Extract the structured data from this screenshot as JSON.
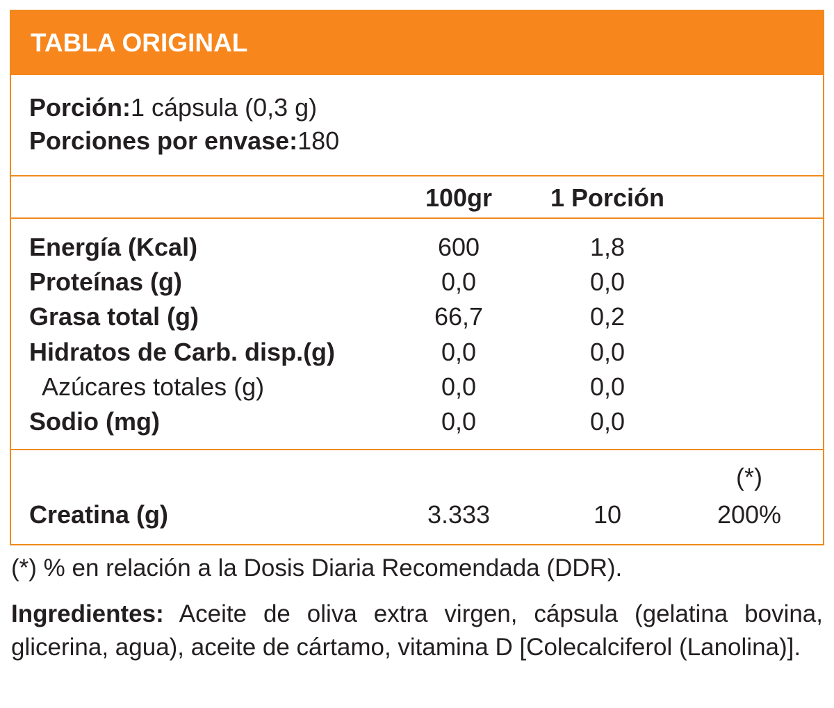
{
  "header": {
    "title": "TABLA ORIGINAL"
  },
  "serving": {
    "portion_label": "Porción:",
    "portion_value": "1 cápsula (0,3 g)",
    "per_container_label": "Porciones por envase:",
    "per_container_value": "180"
  },
  "columns": {
    "col_100": "100gr",
    "col_portion": "1 Porción"
  },
  "nutrients": [
    {
      "name": "Energía (Kcal)",
      "per100": "600",
      "perPortion": "1,8"
    },
    {
      "name": "Proteínas (g)",
      "per100": "0,0",
      "perPortion": "0,0"
    },
    {
      "name": "Grasa total (g)",
      "per100": "66,7",
      "perPortion": "0,2"
    },
    {
      "name": "Hidratos de Carb. disp.(g)",
      "per100": "0,0",
      "perPortion": "0,0"
    },
    {
      "name": "Azúcares totales (g)",
      "per100": "0,0",
      "perPortion": "0,0"
    },
    {
      "name": "Sodio (mg)",
      "per100": "0,0",
      "perPortion": "0,0"
    }
  ],
  "creatine": {
    "name": "Creatina (g)",
    "per100": "3.333",
    "perPortion": "10",
    "ddr_marker": "(*)",
    "ddr_value": "200%"
  },
  "footnote": "(*) % en relación a la Dosis Diaria Recomendada (DDR).",
  "ingredients": {
    "label": "Ingredientes:",
    "text": " Aceite de oliva extra virgen, cápsula (gelatina bovina, glicerina, agua), aceite de cártamo, vitamina D [Colecalciferol (Lanolina)]."
  },
  "colors": {
    "accent": "#f7861d",
    "border": "#f08a1c",
    "text": "#231f20"
  }
}
